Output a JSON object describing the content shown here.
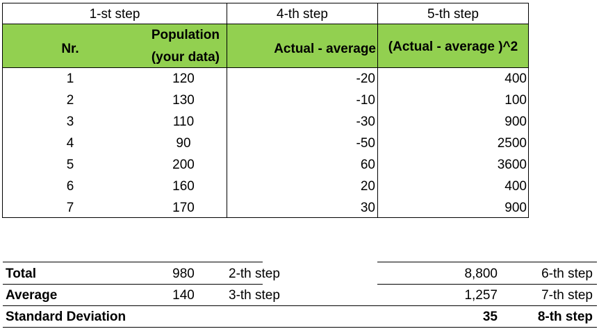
{
  "top_headers": {
    "step1": "1-st step",
    "step4": "4-th step",
    "step5": "5-th step"
  },
  "column_headers": {
    "nr": "Nr.",
    "population_line1": "Population",
    "population_line2": "(your data)",
    "actual_minus_avg": "Actual - average",
    "actual_minus_avg_sq": "(Actual - average )^2"
  },
  "rows": [
    {
      "nr": "1",
      "population": "120",
      "diff": "-20",
      "sq": "400"
    },
    {
      "nr": "2",
      "population": "130",
      "diff": "-10",
      "sq": "100"
    },
    {
      "nr": "3",
      "population": "110",
      "diff": "-30",
      "sq": "900"
    },
    {
      "nr": "4",
      "population": "90",
      "diff": "-50",
      "sq": "2500"
    },
    {
      "nr": "5",
      "population": "200",
      "diff": "60",
      "sq": "3600"
    },
    {
      "nr": "6",
      "population": "160",
      "diff": "20",
      "sq": "400"
    },
    {
      "nr": "7",
      "population": "170",
      "diff": "30",
      "sq": "900"
    }
  ],
  "summary": {
    "total_label": "Total",
    "total_value": "980",
    "total_step": "2-th step",
    "total_sq": "8,800",
    "total_sq_step": "6-th step",
    "average_label": "Average",
    "average_value": "140",
    "average_step": "3-th step",
    "average_sq": "1,257",
    "average_sq_step": "7-th step",
    "sd_label": "Standard Deviation",
    "sd_value": "35",
    "sd_step": "8-th step"
  },
  "colors": {
    "header_green": "#92d050"
  }
}
